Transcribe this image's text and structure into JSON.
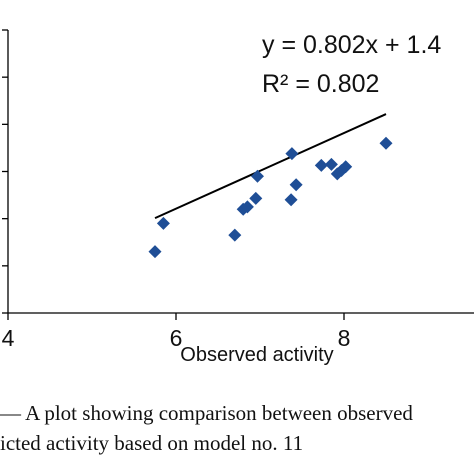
{
  "chart_data": {
    "type": "scatter",
    "title": "",
    "xlabel": "Observed activity",
    "ylabel": "",
    "xlim": [
      4,
      10
    ],
    "ylim": [
      4,
      10
    ],
    "x_ticks": [
      4,
      6,
      8
    ],
    "x_tick_labels": [
      "4",
      "6",
      "8"
    ],
    "marker_color": "#1f4e96",
    "line_color": "#000000",
    "series": [
      {
        "x": [
          5.75,
          5.85,
          6.7,
          6.8,
          6.85,
          6.95,
          6.97,
          7.37,
          7.38,
          7.43,
          7.73,
          7.85,
          7.92,
          7.97,
          8.02,
          8.5
        ],
        "y": [
          5.3,
          5.9,
          5.65,
          6.2,
          6.25,
          6.43,
          6.9,
          6.4,
          7.38,
          6.72,
          7.13,
          7.15,
          6.95,
          7.02,
          7.1,
          7.6
        ]
      }
    ],
    "trendline": {
      "x": [
        5.75,
        8.5
      ],
      "equation": "y = 0.802x + 1.4",
      "r_squared": "R² = 0.802"
    }
  },
  "caption": {
    "line1": "— A plot showing comparison between observed",
    "line2": "icted activity based on model no. 11"
  }
}
